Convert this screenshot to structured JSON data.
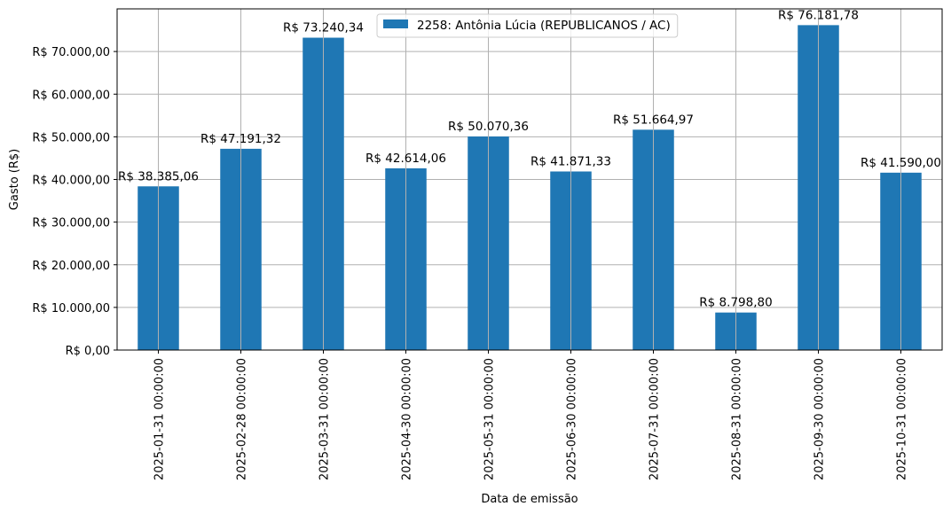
{
  "chart_data": {
    "type": "bar",
    "categories": [
      "2025-01-31 00:00:00",
      "2025-02-28 00:00:00",
      "2025-03-31 00:00:00",
      "2025-04-30 00:00:00",
      "2025-05-31 00:00:00",
      "2025-06-30 00:00:00",
      "2025-07-31 00:00:00",
      "2025-08-31 00:00:00",
      "2025-09-30 00:00:00",
      "2025-10-31 00:00:00"
    ],
    "series": [
      {
        "name": "2258: Antônia Lúcia (REPUBLICANOS / AC)",
        "values": [
          38385.06,
          47191.32,
          73240.34,
          42614.06,
          50070.36,
          41871.33,
          51664.97,
          8798.8,
          76181.78,
          41590.0
        ],
        "color": "#1f77b4"
      }
    ],
    "data_labels": [
      "R$ 38.385,06",
      "R$ 47.191,32",
      "R$ 73.240,34",
      "R$ 42.614,06",
      "R$ 50.070,36",
      "R$ 41.871,33",
      "R$ 51.664,97",
      "R$ 8.798,80",
      "R$ 76.181,78",
      "R$ 41.590,00"
    ],
    "xlabel": "Data de emissão",
    "ylabel": "Gasto (R$)",
    "ylim": [
      0,
      80000
    ],
    "yticks": [
      0,
      10000,
      20000,
      30000,
      40000,
      50000,
      60000,
      70000
    ],
    "ytick_labels": [
      "R$ 0,00",
      "R$ 10.000,00",
      "R$ 20.000,00",
      "R$ 30.000,00",
      "R$ 40.000,00",
      "R$ 50.000,00",
      "R$ 60.000,00",
      "R$ 70.000,00"
    ],
    "grid": true,
    "legend_position": "top-center",
    "grid_color": "#b0b0b0"
  }
}
